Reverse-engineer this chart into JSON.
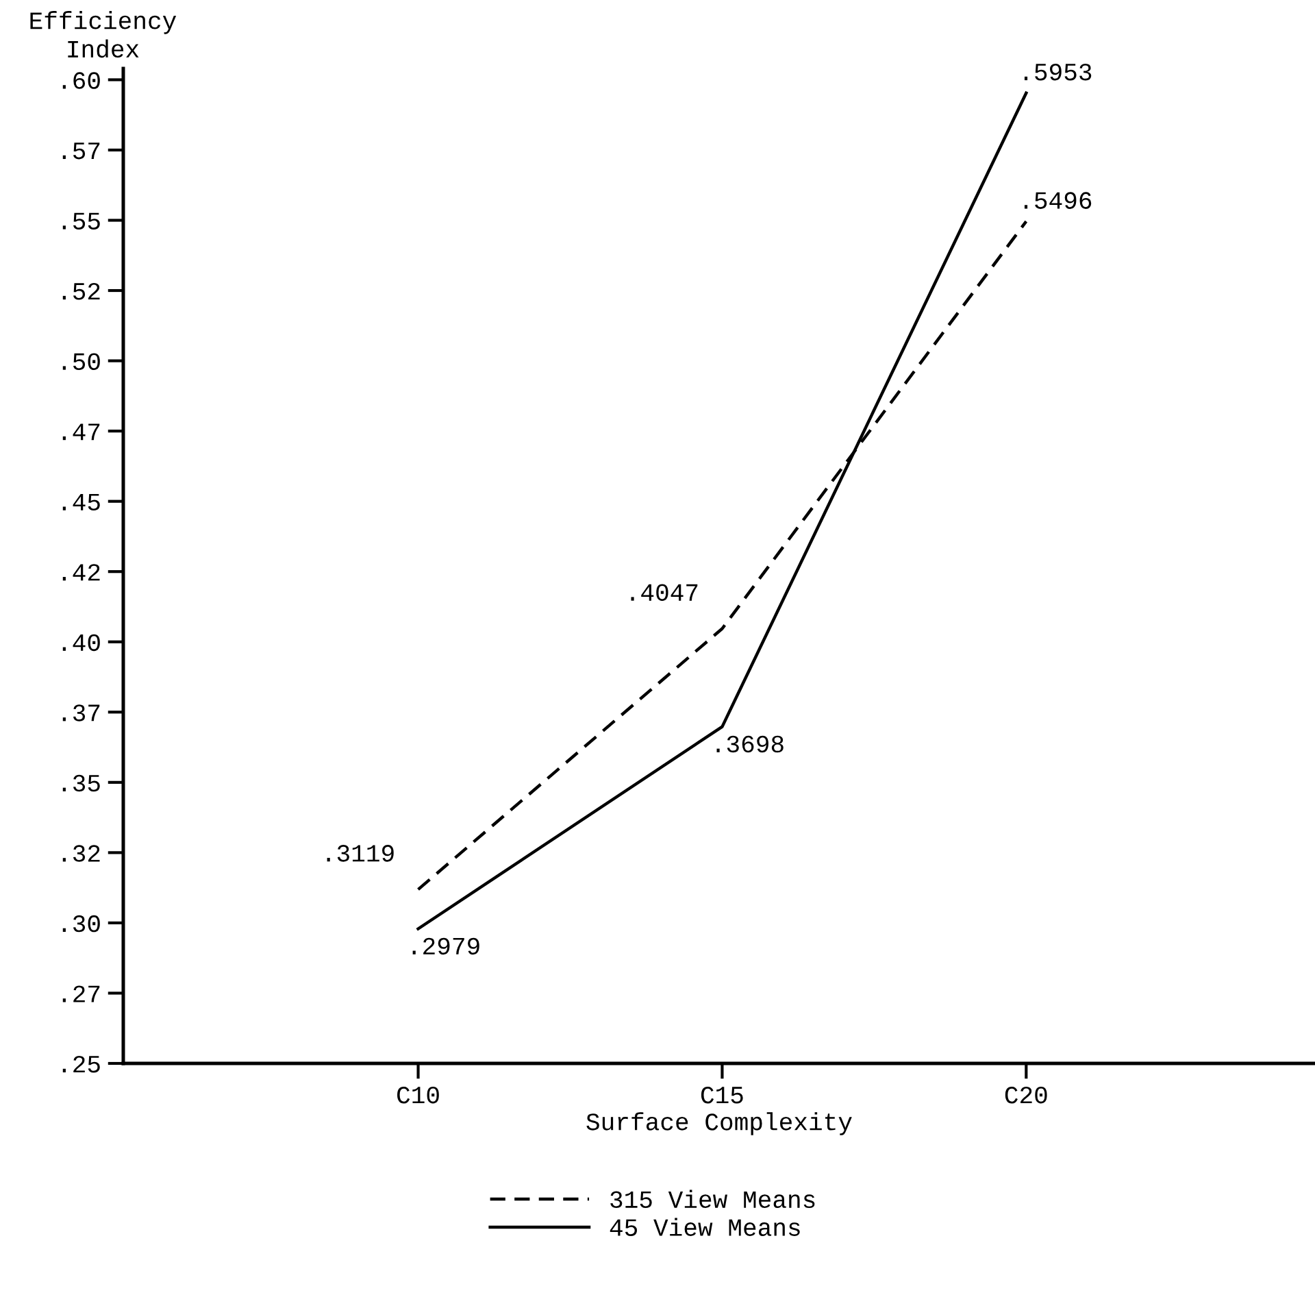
{
  "chart_data": {
    "type": "line",
    "xlabel": "Surface Complexity",
    "ylabel": "Efficiency\nIndex",
    "categories": [
      "C10",
      "C15",
      "C20"
    ],
    "series": [
      {
        "name": "315 View Means",
        "color": "#000000",
        "line_style": "dashed",
        "values": [
          0.3119,
          0.4047,
          0.5496
        ],
        "value_labels": [
          ".3119",
          ".4047",
          ".5496"
        ]
      },
      {
        "name": "45 View Means",
        "color": "#000000",
        "line_style": "solid",
        "values": [
          0.2979,
          0.3698,
          0.5953
        ],
        "value_labels": [
          ".2979",
          ".3698",
          ".5953"
        ]
      }
    ],
    "ylim": [
      0.25,
      0.604
    ],
    "yticks": [
      {
        "value": 0.25,
        "label": ".25"
      },
      {
        "value": 0.275,
        "label": ".27"
      },
      {
        "value": 0.3,
        "label": ".30"
      },
      {
        "value": 0.325,
        "label": ".32"
      },
      {
        "value": 0.35,
        "label": ".35"
      },
      {
        "value": 0.375,
        "label": ".37"
      },
      {
        "value": 0.4,
        "label": ".40"
      },
      {
        "value": 0.425,
        "label": ".42"
      },
      {
        "value": 0.45,
        "label": ".45"
      },
      {
        "value": 0.475,
        "label": ".47"
      },
      {
        "value": 0.5,
        "label": ".50"
      },
      {
        "value": 0.525,
        "label": ".52"
      },
      {
        "value": 0.55,
        "label": ".55"
      },
      {
        "value": 0.575,
        "label": ".57"
      },
      {
        "value": 0.6,
        "label": ".60"
      }
    ],
    "grid": false,
    "legend": "bottom",
    "marker": "none"
  }
}
